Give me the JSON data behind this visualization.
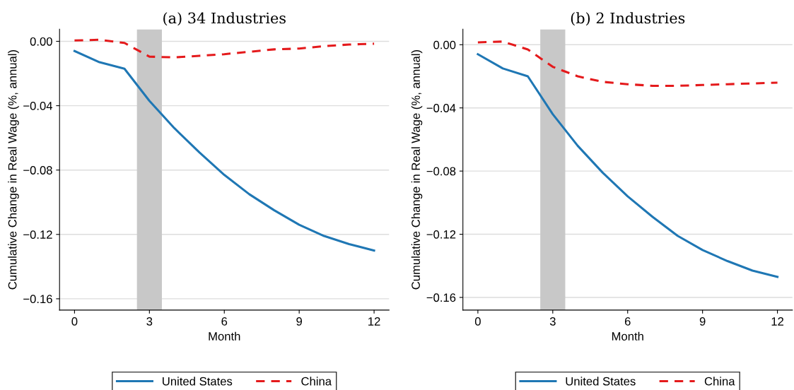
{
  "chart_data": [
    {
      "type": "line",
      "title": "(a) 34 Industries",
      "xlabel": "Month",
      "ylabel": "Cumulative Change in Real Wage (%, annual)",
      "x": [
        0,
        1,
        2,
        3,
        4,
        5,
        6,
        7,
        8,
        9,
        10,
        11,
        12
      ],
      "series": [
        {
          "name": "United States",
          "color": "#1f77b4",
          "line_style": "solid",
          "values": [
            -0.006,
            -0.013,
            -0.017,
            -0.037,
            -0.054,
            -0.069,
            -0.083,
            -0.095,
            -0.105,
            -0.114,
            -0.121,
            -0.126,
            -0.13
          ]
        },
        {
          "name": "China",
          "color": "#e41a1c",
          "line_style": "dashed",
          "values": [
            0.0005,
            0.001,
            -0.001,
            -0.0095,
            -0.01,
            -0.009,
            -0.008,
            -0.0065,
            -0.005,
            -0.0045,
            -0.003,
            -0.002,
            -0.0015
          ]
        }
      ],
      "xlim": [
        -0.6,
        12.6
      ],
      "xticks": [
        0,
        3,
        6,
        9,
        12
      ],
      "ylim": [
        -0.167,
        0.0075
      ],
      "yticks": [
        {
          "value": 0,
          "label": "0.00"
        },
        {
          "value": -0.04,
          "label": "−0.04"
        },
        {
          "value": -0.08,
          "label": "−0.08"
        },
        {
          "value": -0.12,
          "label": "−0.12"
        },
        {
          "value": -0.16,
          "label": "−0.16"
        }
      ],
      "bands": [
        {
          "axis": "x",
          "from": 2.5,
          "to": 3.5,
          "color": "#c8c8c8"
        }
      ],
      "grid": "y",
      "legend": "bottom",
      "marker": "none"
    },
    {
      "type": "line",
      "title": "(b) 2 Industries",
      "xlabel": "Month",
      "ylabel": "Cumulative Change in Real Wage (%, annual)",
      "x": [
        0,
        1,
        2,
        3,
        4,
        5,
        6,
        7,
        8,
        9,
        10,
        11,
        12
      ],
      "series": [
        {
          "name": "United States",
          "color": "#1f77b4",
          "line_style": "solid",
          "values": [
            -0.006,
            -0.015,
            -0.02,
            -0.044,
            -0.064,
            -0.081,
            -0.096,
            -0.109,
            -0.121,
            -0.13,
            -0.137,
            -0.143,
            -0.147
          ]
        },
        {
          "name": "China",
          "color": "#e41a1c",
          "line_style": "dashed",
          "values": [
            0.0015,
            0.002,
            -0.003,
            -0.014,
            -0.02,
            -0.0235,
            -0.025,
            -0.026,
            -0.026,
            -0.0255,
            -0.025,
            -0.0245,
            -0.024
          ]
        }
      ],
      "xlim": [
        -0.6,
        12.6
      ],
      "xticks": [
        0,
        3,
        6,
        9,
        12
      ],
      "ylim": [
        -0.168,
        0.0098
      ],
      "yticks": [
        {
          "value": 0,
          "label": "0.00"
        },
        {
          "value": -0.04,
          "label": "−0.04"
        },
        {
          "value": -0.08,
          "label": "−0.08"
        },
        {
          "value": -0.12,
          "label": "−0.12"
        },
        {
          "value": -0.16,
          "label": "−0.16"
        }
      ],
      "bands": [
        {
          "axis": "x",
          "from": 2.5,
          "to": 3.5,
          "color": "#c8c8c8"
        }
      ],
      "grid": "y",
      "legend": "bottom",
      "marker": "none"
    }
  ]
}
